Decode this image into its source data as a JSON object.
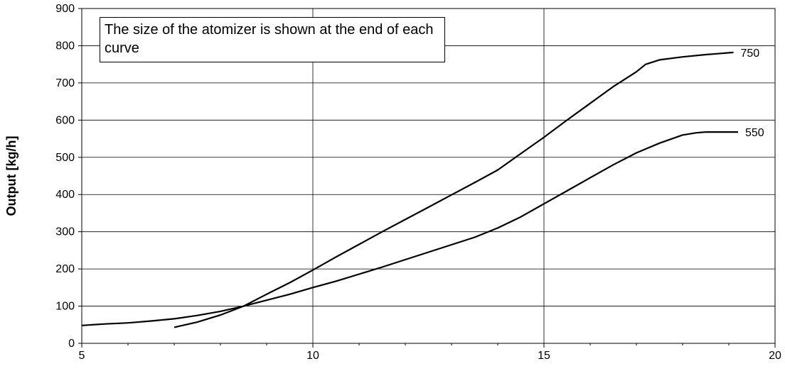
{
  "chart_data": {
    "type": "line",
    "title": "",
    "xlabel": "",
    "ylabel": "Output [kg/h]",
    "xlim": [
      5,
      20
    ],
    "ylim": [
      0,
      900
    ],
    "x_ticks": [
      5,
      10,
      15,
      20
    ],
    "y_ticks": [
      0,
      100,
      200,
      300,
      400,
      500,
      600,
      700,
      800,
      900
    ],
    "grid": true,
    "annotation": "The size of the atomizer is shown at the end of each curve",
    "series": [
      {
        "name": "550",
        "x": [
          5,
          5.5,
          6,
          6.5,
          7,
          7.5,
          8,
          8.5,
          9,
          9.5,
          10,
          10.5,
          11,
          11.5,
          12,
          12.5,
          13,
          13.5,
          14,
          14.5,
          15,
          15.5,
          16,
          16.5,
          17,
          17.5,
          18,
          18.3,
          18.5,
          19.2
        ],
        "y": [
          48,
          52,
          55,
          60,
          66,
          75,
          86,
          100,
          116,
          132,
          150,
          167,
          186,
          205,
          225,
          245,
          265,
          285,
          310,
          340,
          375,
          410,
          445,
          480,
          512,
          538,
          560,
          566,
          568,
          568
        ]
      },
      {
        "name": "750",
        "x": [
          7,
          7.5,
          8,
          8.5,
          9,
          9.5,
          10,
          10.5,
          11,
          11.5,
          12,
          12.5,
          13,
          13.5,
          14,
          14.5,
          15,
          15.5,
          16,
          16.5,
          17,
          17.2,
          17.5,
          18,
          18.5,
          19.1
        ],
        "y": [
          43,
          57,
          76,
          100,
          132,
          163,
          197,
          232,
          266,
          300,
          333,
          366,
          399,
          432,
          466,
          510,
          554,
          600,
          645,
          690,
          730,
          750,
          762,
          770,
          776,
          782
        ]
      }
    ]
  }
}
